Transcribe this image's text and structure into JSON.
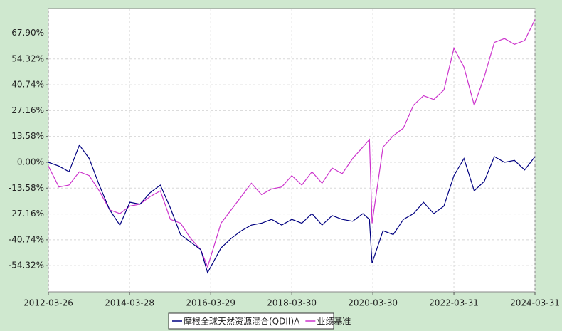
{
  "chart_data": {
    "type": "line",
    "x": [
      "2012-03-26",
      "2012-06-29",
      "2012-09-28",
      "2012-12-31",
      "2013-03-29",
      "2013-06-28",
      "2013-09-30",
      "2013-12-31",
      "2014-03-31",
      "2014-06-30",
      "2014-09-30",
      "2014-12-31",
      "2015-03-31",
      "2015-06-30",
      "2015-09-30",
      "2015-12-31",
      "2016-03-01",
      "2016-06-30",
      "2016-09-30",
      "2016-12-30",
      "2017-03-31",
      "2017-06-30",
      "2017-09-29",
      "2017-12-29",
      "2018-03-30",
      "2018-06-29",
      "2018-09-28",
      "2018-12-28",
      "2019-03-29",
      "2019-06-28",
      "2019-09-30",
      "2019-12-31",
      "2020-02-28",
      "2020-03-23",
      "2020-06-30",
      "2020-09-30",
      "2020-12-31",
      "2021-03-31",
      "2021-06-30",
      "2021-09-30",
      "2021-12-31",
      "2022-03-31",
      "2022-06-30",
      "2022-09-30",
      "2022-12-30",
      "2023-03-31",
      "2023-06-30",
      "2023-09-28",
      "2023-12-29",
      "2024-03-31"
    ],
    "series": [
      {
        "name": "摩根全球天然资源混合(QDII)A",
        "color": "#000080",
        "values": [
          0,
          -2,
          -5,
          9,
          2,
          -12,
          -25,
          -33,
          -21,
          -22,
          -16,
          -12,
          -24,
          -38,
          -42,
          -46,
          -58,
          -45,
          -40,
          -36,
          -33,
          -32,
          -30,
          -33,
          -30,
          -32,
          -27,
          -33,
          -28,
          -30,
          -31,
          -27,
          -30,
          -53,
          -36,
          -38,
          -30,
          -27,
          -21,
          -27,
          -23,
          -7,
          2,
          -15,
          -10,
          3,
          0,
          1,
          -4,
          3
        ]
      },
      {
        "name": "业绩基准",
        "color": "#cc33cc",
        "values": [
          -2,
          -13,
          -12,
          -5,
          -7,
          -15,
          -25,
          -27,
          -23,
          -22,
          -18,
          -15,
          -30,
          -32,
          -40,
          -46,
          -55,
          -32,
          -25,
          -18,
          -11,
          -17,
          -14,
          -13,
          -7,
          -12,
          -5,
          -11,
          -3,
          -6,
          2,
          8,
          12,
          -32,
          8,
          14,
          18,
          30,
          35,
          33,
          38,
          60,
          50,
          30,
          45,
          63,
          65,
          62,
          64,
          75
        ]
      }
    ],
    "xlim": [
      "2012-03-26",
      "2024-03-31"
    ],
    "xticks": [
      "2012-03-26",
      "2014-03-28",
      "2016-03-29",
      "2018-03-30",
      "2020-03-30",
      "2022-03-31",
      "2024-03-31"
    ],
    "ylim": [
      -68.1,
      80.8
    ],
    "yticks": [
      {
        "value": -54.32,
        "label": "-54.32%"
      },
      {
        "value": -40.74,
        "label": "-40.74%"
      },
      {
        "value": -27.16,
        "label": "-27.16%"
      },
      {
        "value": -13.58,
        "label": "-13.58%"
      },
      {
        "value": 0,
        "label": "0.00%"
      },
      {
        "value": 13.58,
        "label": "13.58%"
      },
      {
        "value": 27.16,
        "label": "27.16%"
      },
      {
        "value": 40.74,
        "label": "40.74%"
      },
      {
        "value": 54.32,
        "label": "54.32%"
      },
      {
        "value": 67.9,
        "label": "67.90%"
      }
    ],
    "grid": true,
    "legend": "bottom"
  }
}
